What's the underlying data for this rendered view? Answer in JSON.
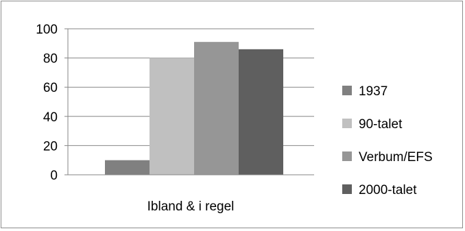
{
  "chart_data": {
    "type": "bar",
    "categories": [
      "Ibland & i regel"
    ],
    "series": [
      {
        "name": "1937",
        "values": [
          10
        ],
        "color": "#808080"
      },
      {
        "name": "90-talet",
        "values": [
          80
        ],
        "color": "#c0c0c0"
      },
      {
        "name": "Verbum/EFS",
        "values": [
          91
        ],
        "color": "#969696"
      },
      {
        "name": "2000-talet",
        "values": [
          86
        ],
        "color": "#5f5f5f"
      }
    ],
    "yticks": [
      "0",
      "20",
      "40",
      "60",
      "80",
      "100"
    ],
    "ylim": [
      0,
      100
    ],
    "grid": true,
    "legend_position": "right"
  }
}
